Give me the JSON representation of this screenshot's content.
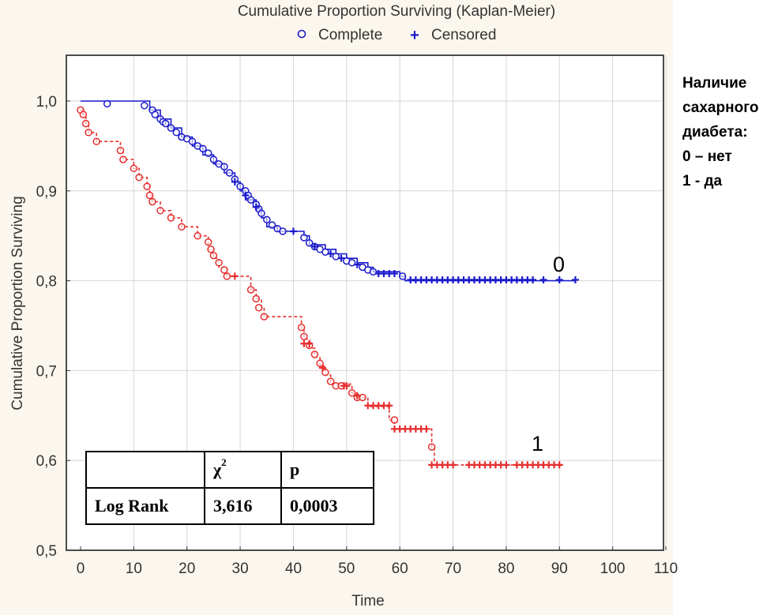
{
  "chart_data": {
    "type": "line",
    "title": "Cumulative Proportion Surviving (Kaplan-Meier)",
    "xlabel": "Time",
    "ylabel": "Cumulative Proportion Surviving",
    "xlim": [
      0,
      110
    ],
    "ylim": [
      0.5,
      1.05
    ],
    "xticks": [
      0,
      10,
      20,
      30,
      40,
      50,
      60,
      70,
      80,
      90,
      100,
      110
    ],
    "xtick_labels": [
      "0",
      "10",
      "20",
      "30",
      "40",
      "50",
      "60",
      "70",
      "80",
      "90",
      "100",
      "110"
    ],
    "yticks": [
      0.5,
      0.6,
      0.7,
      0.8,
      0.9,
      1.0
    ],
    "ytick_labels": [
      "0,5",
      "0,6",
      "0,7",
      "0,8",
      "0,9",
      "1,0"
    ],
    "grid": true,
    "legend": {
      "position": "top",
      "complete_label": "Complete",
      "censored_label": "Censored"
    },
    "series": [
      {
        "name": "0",
        "label": "0",
        "color": "#1a1acc",
        "dashed": false,
        "steps": [
          [
            0,
            1.0
          ],
          [
            12,
            1.0
          ],
          [
            13,
            0.99
          ],
          [
            15,
            0.98
          ],
          [
            17,
            0.97
          ],
          [
            19,
            0.96
          ],
          [
            21,
            0.95
          ],
          [
            23,
            0.94
          ],
          [
            25,
            0.93
          ],
          [
            27,
            0.92
          ],
          [
            29,
            0.91
          ],
          [
            30,
            0.9
          ],
          [
            31,
            0.89
          ],
          [
            33,
            0.88
          ],
          [
            34,
            0.87
          ],
          [
            35,
            0.86
          ],
          [
            37,
            0.855
          ],
          [
            42,
            0.85
          ],
          [
            43,
            0.84
          ],
          [
            46,
            0.835
          ],
          [
            48,
            0.83
          ],
          [
            50,
            0.825
          ],
          [
            52,
            0.82
          ],
          [
            54,
            0.815
          ],
          [
            55,
            0.81
          ],
          [
            60,
            0.805
          ],
          [
            61,
            0.8
          ],
          [
            93,
            0.8
          ]
        ],
        "complete": [
          [
            5,
            0.997
          ],
          [
            12,
            0.995
          ],
          [
            13.5,
            0.99
          ],
          [
            14,
            0.985
          ],
          [
            15,
            0.98
          ],
          [
            15.5,
            0.977
          ],
          [
            16,
            0.975
          ],
          [
            17,
            0.97
          ],
          [
            18,
            0.965
          ],
          [
            19,
            0.96
          ],
          [
            20,
            0.958
          ],
          [
            21,
            0.955
          ],
          [
            22,
            0.95
          ],
          [
            23,
            0.947
          ],
          [
            24,
            0.942
          ],
          [
            25,
            0.935
          ],
          [
            26,
            0.93
          ],
          [
            27,
            0.927
          ],
          [
            28,
            0.92
          ],
          [
            29,
            0.913
          ],
          [
            30,
            0.905
          ],
          [
            31,
            0.9
          ],
          [
            31.5,
            0.895
          ],
          [
            32,
            0.89
          ],
          [
            33,
            0.885
          ],
          [
            33.5,
            0.88
          ],
          [
            34,
            0.875
          ],
          [
            35,
            0.868
          ],
          [
            36,
            0.862
          ],
          [
            37,
            0.858
          ],
          [
            38,
            0.855
          ],
          [
            42,
            0.848
          ],
          [
            43,
            0.842
          ],
          [
            44,
            0.838
          ],
          [
            45,
            0.835
          ],
          [
            46,
            0.832
          ],
          [
            48,
            0.827
          ],
          [
            50,
            0.822
          ],
          [
            51,
            0.82
          ],
          [
            53,
            0.815
          ],
          [
            54,
            0.812
          ],
          [
            55,
            0.81
          ],
          [
            60.5,
            0.805
          ]
        ],
        "censored": [
          [
            29,
            0.91
          ],
          [
            31,
            0.895
          ],
          [
            33,
            0.882
          ],
          [
            40,
            0.855
          ],
          [
            44,
            0.838
          ],
          [
            47,
            0.83
          ],
          [
            49,
            0.825
          ],
          [
            52,
            0.818
          ],
          [
            56,
            0.808
          ],
          [
            57,
            0.808
          ],
          [
            58,
            0.808
          ],
          [
            59,
            0.808
          ],
          [
            62,
            0.801
          ],
          [
            63,
            0.801
          ],
          [
            64,
            0.801
          ],
          [
            65,
            0.801
          ],
          [
            66,
            0.801
          ],
          [
            67,
            0.801
          ],
          [
            68,
            0.801
          ],
          [
            69,
            0.801
          ],
          [
            70,
            0.801
          ],
          [
            71,
            0.801
          ],
          [
            72,
            0.801
          ],
          [
            73,
            0.801
          ],
          [
            74,
            0.801
          ],
          [
            75,
            0.801
          ],
          [
            76,
            0.801
          ],
          [
            77,
            0.801
          ],
          [
            78,
            0.801
          ],
          [
            79,
            0.801
          ],
          [
            80,
            0.801
          ],
          [
            81,
            0.801
          ],
          [
            82,
            0.801
          ],
          [
            83,
            0.801
          ],
          [
            84,
            0.801
          ],
          [
            85,
            0.801
          ],
          [
            87,
            0.801
          ],
          [
            90,
            0.801
          ],
          [
            93,
            0.801
          ]
        ]
      },
      {
        "name": "1",
        "label": "1",
        "color": "#e62e2e",
        "dashed": true,
        "steps": [
          [
            0,
            0.99
          ],
          [
            0.5,
            0.985
          ],
          [
            1,
            0.975
          ],
          [
            1.5,
            0.965
          ],
          [
            3,
            0.955
          ],
          [
            7.5,
            0.945
          ],
          [
            8,
            0.935
          ],
          [
            10,
            0.925
          ],
          [
            11,
            0.915
          ],
          [
            12.5,
            0.905
          ],
          [
            13,
            0.895
          ],
          [
            13.5,
            0.888
          ],
          [
            15,
            0.878
          ],
          [
            17,
            0.87
          ],
          [
            19,
            0.86
          ],
          [
            22,
            0.85
          ],
          [
            24,
            0.835
          ],
          [
            25,
            0.825
          ],
          [
            26,
            0.815
          ],
          [
            27.5,
            0.805
          ],
          [
            32,
            0.79
          ],
          [
            33,
            0.78
          ],
          [
            34,
            0.77
          ],
          [
            34.5,
            0.76
          ],
          [
            41.5,
            0.745
          ],
          [
            42,
            0.735
          ],
          [
            43,
            0.725
          ],
          [
            44,
            0.715
          ],
          [
            45,
            0.705
          ],
          [
            46,
            0.695
          ],
          [
            47,
            0.685
          ],
          [
            51,
            0.675
          ],
          [
            52,
            0.67
          ],
          [
            54,
            0.66
          ],
          [
            58,
            0.645
          ],
          [
            59,
            0.635
          ],
          [
            66,
            0.615
          ],
          [
            66.5,
            0.595
          ],
          [
            90,
            0.595
          ]
        ],
        "complete": [
          [
            0,
            0.99
          ],
          [
            0.5,
            0.985
          ],
          [
            1,
            0.975
          ],
          [
            1.5,
            0.965
          ],
          [
            3,
            0.955
          ],
          [
            7.5,
            0.945
          ],
          [
            8,
            0.935
          ],
          [
            10,
            0.925
          ],
          [
            11,
            0.915
          ],
          [
            12.5,
            0.905
          ],
          [
            13,
            0.895
          ],
          [
            13.5,
            0.888
          ],
          [
            15,
            0.878
          ],
          [
            17,
            0.87
          ],
          [
            19,
            0.86
          ],
          [
            22,
            0.85
          ],
          [
            24,
            0.843
          ],
          [
            24.5,
            0.835
          ],
          [
            25,
            0.828
          ],
          [
            26,
            0.82
          ],
          [
            27,
            0.812
          ],
          [
            27.5,
            0.805
          ],
          [
            32,
            0.79
          ],
          [
            33,
            0.78
          ],
          [
            33.5,
            0.77
          ],
          [
            34.5,
            0.76
          ],
          [
            41.5,
            0.748
          ],
          [
            42,
            0.738
          ],
          [
            43,
            0.728
          ],
          [
            44,
            0.718
          ],
          [
            45,
            0.708
          ],
          [
            46,
            0.698
          ],
          [
            47,
            0.688
          ],
          [
            48,
            0.683
          ],
          [
            49,
            0.683
          ],
          [
            51,
            0.675
          ],
          [
            52,
            0.67
          ],
          [
            53,
            0.67
          ],
          [
            59,
            0.645
          ],
          [
            66,
            0.615
          ]
        ],
        "censored": [
          [
            29,
            0.805
          ],
          [
            42,
            0.73
          ],
          [
            43,
            0.73
          ],
          [
            45.5,
            0.703
          ],
          [
            49.5,
            0.683
          ],
          [
            50,
            0.683
          ],
          [
            52,
            0.672
          ],
          [
            54,
            0.661
          ],
          [
            55,
            0.661
          ],
          [
            56,
            0.661
          ],
          [
            57,
            0.661
          ],
          [
            58,
            0.661
          ],
          [
            59,
            0.635
          ],
          [
            60,
            0.635
          ],
          [
            61,
            0.635
          ],
          [
            62,
            0.635
          ],
          [
            63,
            0.635
          ],
          [
            64,
            0.635
          ],
          [
            65,
            0.635
          ],
          [
            66,
            0.595
          ],
          [
            67,
            0.595
          ],
          [
            68,
            0.595
          ],
          [
            69,
            0.595
          ],
          [
            70,
            0.595
          ],
          [
            73,
            0.595
          ],
          [
            74,
            0.595
          ],
          [
            75,
            0.595
          ],
          [
            76,
            0.595
          ],
          [
            77,
            0.595
          ],
          [
            78,
            0.595
          ],
          [
            79,
            0.595
          ],
          [
            80,
            0.595
          ],
          [
            82,
            0.595
          ],
          [
            83,
            0.595
          ],
          [
            84,
            0.595
          ],
          [
            85,
            0.595
          ],
          [
            86,
            0.595
          ],
          [
            87,
            0.595
          ],
          [
            88,
            0.595
          ],
          [
            89,
            0.595
          ],
          [
            90,
            0.595
          ]
        ]
      }
    ]
  },
  "side_note": {
    "lines": [
      "Наличие",
      "сахарного",
      "диабета:",
      "0 – нет",
      "1 - да"
    ]
  },
  "stats_table": {
    "header_empty": "",
    "chi_symbol": "χ",
    "chi_superscript": "2",
    "p_header": "p",
    "row_label": "Log Rank",
    "chi_value": "3,616",
    "p_value": "0,0003"
  }
}
